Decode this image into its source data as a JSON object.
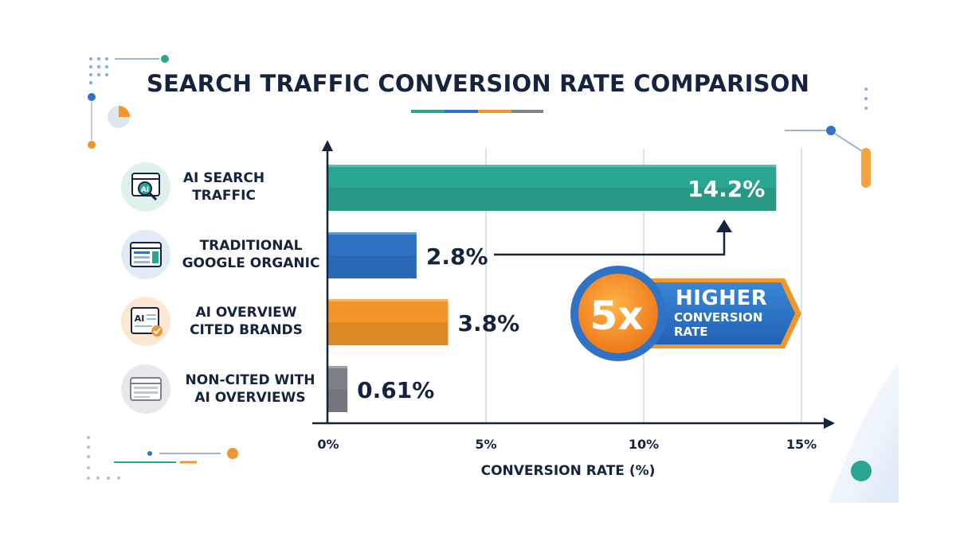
{
  "chart_data": {
    "type": "bar",
    "orientation": "horizontal",
    "title": "SEARCH TRAFFIC CONVERSION RATE COMPARISON",
    "xlabel": "CONVERSION RATE (%)",
    "ylabel": "",
    "xlim": [
      0,
      15
    ],
    "ticks": [
      0,
      5,
      10,
      15
    ],
    "tick_labels": [
      "0%",
      "5%",
      "10%",
      "15%"
    ],
    "grid": true,
    "categories": [
      {
        "label_line1": "AI SEARCH",
        "label_line2": "TRAFFIC",
        "value": 14.2,
        "value_label": "14.2%",
        "color": "#2aa58f",
        "icon": "ai-search-icon"
      },
      {
        "label_line1": "TRADITIONAL",
        "label_line2": "GOOGLE ORGANIC",
        "value": 2.8,
        "value_label": "2.8%",
        "color": "#2f72c6",
        "icon": "browser-page-icon"
      },
      {
        "label_line1": "AI OVERVIEW",
        "label_line2": "CITED BRANDS",
        "value": 3.8,
        "value_label": "3.8%",
        "color": "#f0962a",
        "icon": "ai-document-check-icon"
      },
      {
        "label_line1": "NON-CITED WITH",
        "label_line2": "AI OVERVIEWS",
        "value": 0.61,
        "value_label": "0.61%",
        "color": "#7d8188",
        "icon": "blank-browser-icon"
      }
    ],
    "annotation": {
      "multiplier": "5x",
      "line1": "HIGHER",
      "line2": "CONVERSION",
      "line3": "RATE"
    }
  },
  "colors": {
    "navy": "#16233f",
    "teal": "#2aa58f",
    "blue": "#2f72c6",
    "orange": "#f0962a",
    "gray": "#7d8188"
  }
}
